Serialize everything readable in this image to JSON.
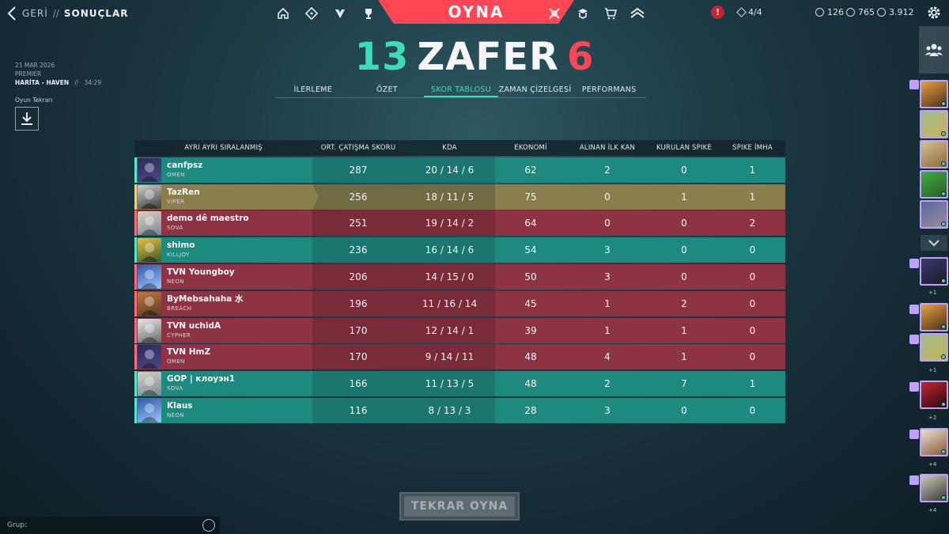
{
  "nav": {
    "back_label": "GERİ",
    "separator": "//",
    "page_label": "SONUÇLAR",
    "play_label": "OYNA",
    "alert_label": "!",
    "tokens": "4/4",
    "currency": {
      "vp": "126",
      "rp": "765",
      "kc": "3.912"
    },
    "icons": [
      "home-icon",
      "career-icon",
      "agents-icon",
      "collection-icon",
      "battlepass-icon",
      "esports-icon",
      "store-icon",
      "premier-icon"
    ]
  },
  "result": {
    "ally_score": "13",
    "label": "ZAFER",
    "enemy_score": "6"
  },
  "tabs": [
    {
      "label": "İLERLEME"
    },
    {
      "label": "ÖZET"
    },
    {
      "label": "SKOR TABLOSU"
    },
    {
      "label": "ZAMAN ÇİZELGESİ"
    },
    {
      "label": "PERFORMANS"
    }
  ],
  "match": {
    "date": "21 MAR 2026",
    "mode": "PREMIER",
    "map": "HARİTA - HAVEN",
    "sep": "//",
    "duration": "34:29",
    "replay_label": "Oyun Tekrarı"
  },
  "scoreboard": {
    "headers": [
      "AYRI AYRI SIRALANMIŞ",
      "ORT. ÇATIŞMA SKORU",
      "KDA",
      "EKONOMİ",
      "ALINAN İLK KAN",
      "KURULAN SPIKE",
      "SPIKE İMHA"
    ],
    "rows": [
      {
        "team": "ally",
        "name": "canfpsz",
        "agent": "OMEN",
        "acs": "287",
        "kda": "20 / 14 / 6",
        "eco": "62",
        "fb": "2",
        "plants": "0",
        "defuses": "1"
      },
      {
        "team": "me",
        "name": "TazRen",
        "agent": "VIPER",
        "acs": "256",
        "kda": "18 / 11 / 5",
        "eco": "75",
        "fb": "0",
        "plants": "1",
        "defuses": "1"
      },
      {
        "team": "enemy",
        "name": "demo dê maestro",
        "agent": "SOVA",
        "acs": "251",
        "kda": "19 / 14 / 2",
        "eco": "64",
        "fb": "0",
        "plants": "0",
        "defuses": "2"
      },
      {
        "team": "ally",
        "name": "shimo",
        "agent": "KILLJOY",
        "acs": "236",
        "kda": "16 / 14 / 6",
        "eco": "54",
        "fb": "3",
        "plants": "0",
        "defuses": "0"
      },
      {
        "team": "enemy",
        "name": "TVN Youngboy",
        "agent": "NEON",
        "acs": "206",
        "kda": "14 / 15 / 0",
        "eco": "50",
        "fb": "3",
        "plants": "0",
        "defuses": "0"
      },
      {
        "team": "enemy",
        "name": "ByMebsahaha 水",
        "agent": "BREACH",
        "acs": "196",
        "kda": "11 / 16 / 14",
        "eco": "45",
        "fb": "1",
        "plants": "2",
        "defuses": "0"
      },
      {
        "team": "enemy",
        "name": "TVN uchidA",
        "agent": "CYPHER",
        "acs": "170",
        "kda": "12 / 14 / 1",
        "eco": "39",
        "fb": "1",
        "plants": "1",
        "defuses": "0"
      },
      {
        "team": "enemy",
        "name": "TVN HmZ",
        "agent": "OMEN",
        "acs": "170",
        "kda": "9 / 14 / 11",
        "eco": "48",
        "fb": "4",
        "plants": "1",
        "defuses": "0"
      },
      {
        "team": "ally",
        "name": "GOP | клоуэн1",
        "agent": "SOVA",
        "acs": "166",
        "kda": "11 / 13 / 5",
        "eco": "48",
        "fb": "2",
        "plants": "7",
        "defuses": "1"
      },
      {
        "team": "ally",
        "name": "Klaus",
        "agent": "NEON",
        "acs": "116",
        "kda": "8 / 13 / 3",
        "eco": "28",
        "fb": "3",
        "plants": "0",
        "defuses": "0"
      }
    ]
  },
  "play_again_label": "TEKRAR OYNA",
  "chat": {
    "label": "Grup:"
  },
  "social": {
    "party_counts": [
      "+1",
      "+1",
      "+2",
      "+4",
      "+4"
    ]
  },
  "colors": {
    "ally": "#1e8a7f",
    "enemy": "#8e3344",
    "me": "#8a7f4c",
    "accent": "#ff4655",
    "win": "#3fdcb8"
  }
}
